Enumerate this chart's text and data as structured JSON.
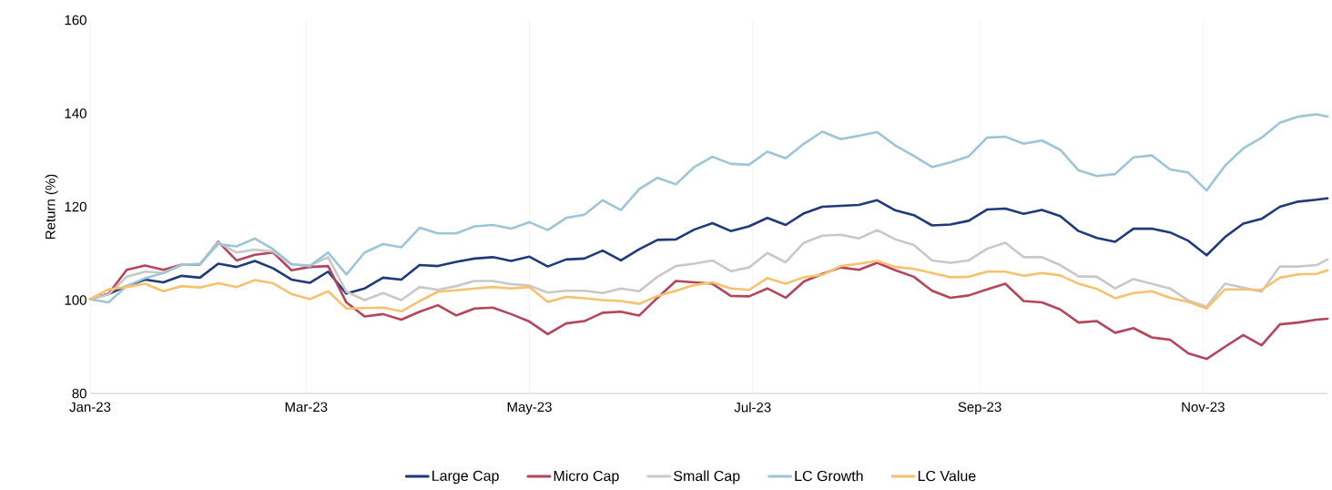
{
  "chart_data": {
    "type": "line",
    "ylabel": "Return (%)",
    "x": [
      "2023-01-01",
      "2023-01-06",
      "2023-01-11",
      "2023-01-16",
      "2023-01-21",
      "2023-01-26",
      "2023-01-31",
      "2023-02-05",
      "2023-02-10",
      "2023-02-15",
      "2023-02-20",
      "2023-02-25",
      "2023-03-02",
      "2023-03-07",
      "2023-03-12",
      "2023-03-17",
      "2023-03-22",
      "2023-03-27",
      "2023-04-01",
      "2023-04-06",
      "2023-04-11",
      "2023-04-16",
      "2023-04-21",
      "2023-04-26",
      "2023-05-01",
      "2023-05-06",
      "2023-05-11",
      "2023-05-16",
      "2023-05-21",
      "2023-05-26",
      "2023-05-31",
      "2023-06-05",
      "2023-06-10",
      "2023-06-15",
      "2023-06-20",
      "2023-06-25",
      "2023-06-30",
      "2023-07-05",
      "2023-07-10",
      "2023-07-15",
      "2023-07-20",
      "2023-07-25",
      "2023-07-30",
      "2023-08-04",
      "2023-08-09",
      "2023-08-14",
      "2023-08-19",
      "2023-08-24",
      "2023-08-29",
      "2023-09-03",
      "2023-09-08",
      "2023-09-13",
      "2023-09-18",
      "2023-09-23",
      "2023-09-28",
      "2023-10-03",
      "2023-10-08",
      "2023-10-13",
      "2023-10-18",
      "2023-10-23",
      "2023-10-28",
      "2023-11-02",
      "2023-11-07",
      "2023-11-12",
      "2023-11-17",
      "2023-11-22",
      "2023-11-27",
      "2023-12-02",
      "2023-12-05"
    ],
    "series": [
      {
        "name": "Large Cap",
        "color": "#1f3a7a",
        "values": [
          100.2,
          101.3,
          103.0,
          104.4,
          103.8,
          105.2,
          104.8,
          107.8,
          107.1,
          108.4,
          106.8,
          104.4,
          103.7,
          106.1,
          101.4,
          102.5,
          104.8,
          104.4,
          107.5,
          107.3,
          108.2,
          108.9,
          109.2,
          108.4,
          109.3,
          107.2,
          108.7,
          108.9,
          110.6,
          108.5,
          110.9,
          112.9,
          113.0,
          115.1,
          116.5,
          114.8,
          115.8,
          117.6,
          116.1,
          118.6,
          120.0,
          120.2,
          120.4,
          121.4,
          119.2,
          118.2,
          116.0,
          116.2,
          117.0,
          119.4,
          119.6,
          118.5,
          119.3,
          118.0,
          114.8,
          113.3,
          112.5,
          115.3,
          115.3,
          114.5,
          112.7,
          109.6,
          113.5,
          116.4,
          117.4,
          120.0,
          121.1,
          121.5,
          121.8
        ]
      },
      {
        "name": "Micro Cap",
        "color": "#b5455a",
        "values": [
          100.2,
          101.3,
          106.5,
          107.4,
          106.5,
          107.6,
          107.6,
          112.5,
          108.5,
          109.7,
          110.2,
          106.4,
          107.1,
          107.3,
          99.5,
          96.5,
          97.0,
          95.8,
          97.5,
          98.9,
          96.7,
          98.2,
          98.4,
          97.0,
          95.4,
          92.7,
          95.0,
          95.5,
          97.3,
          97.5,
          96.7,
          100.5,
          104.1,
          103.8,
          103.5,
          100.9,
          100.8,
          102.5,
          100.5,
          104.0,
          105.6,
          107.0,
          106.5,
          108.0,
          106.4,
          105.0,
          102.0,
          100.5,
          101.0,
          102.3,
          103.5,
          99.8,
          99.5,
          98.0,
          95.2,
          95.5,
          93.0,
          94.0,
          92.0,
          91.5,
          88.6,
          87.4,
          90.0,
          92.5,
          90.3,
          94.8,
          95.2,
          95.8,
          96.0
        ]
      },
      {
        "name": "Small Cap",
        "color": "#c8c8c8",
        "values": [
          100.2,
          101.2,
          105.0,
          106.1,
          105.8,
          107.6,
          107.7,
          112.3,
          110.2,
          110.8,
          110.4,
          107.6,
          107.4,
          109.2,
          101.8,
          100.0,
          101.5,
          100.0,
          102.8,
          102.2,
          103.0,
          104.1,
          104.1,
          103.4,
          103.1,
          101.6,
          102.0,
          102.0,
          101.5,
          102.5,
          101.9,
          105.0,
          107.3,
          107.8,
          108.5,
          106.2,
          107.0,
          110.1,
          108.1,
          112.3,
          113.8,
          114.0,
          113.2,
          115.0,
          113.0,
          111.8,
          108.5,
          108.0,
          108.5,
          111.0,
          112.3,
          109.2,
          109.2,
          107.5,
          105.1,
          105.0,
          102.5,
          104.5,
          103.5,
          102.5,
          99.9,
          98.6,
          103.5,
          102.7,
          101.8,
          107.2,
          107.2,
          107.5,
          108.7
        ]
      },
      {
        "name": "LC Growth",
        "color": "#9cc6d8",
        "values": [
          100.2,
          99.5,
          103.0,
          104.7,
          105.8,
          107.5,
          107.8,
          112.0,
          111.5,
          113.2,
          110.9,
          107.7,
          107.3,
          110.2,
          105.5,
          110.2,
          112.0,
          111.3,
          115.5,
          114.3,
          114.3,
          115.8,
          116.1,
          115.3,
          116.7,
          115.0,
          117.6,
          118.3,
          121.4,
          119.3,
          123.8,
          126.2,
          124.8,
          128.5,
          130.7,
          129.2,
          129.0,
          131.8,
          130.4,
          133.5,
          136.1,
          134.5,
          135.2,
          136.0,
          133.1,
          130.9,
          128.5,
          129.5,
          130.8,
          134.8,
          135.0,
          133.5,
          134.2,
          132.2,
          127.8,
          126.6,
          127.0,
          130.6,
          131.0,
          128.0,
          127.3,
          123.5,
          128.8,
          132.5,
          134.8,
          138.0,
          139.3,
          139.8,
          139.3
        ]
      },
      {
        "name": "LC Value",
        "color": "#f7c26e",
        "values": [
          100.2,
          102.3,
          102.8,
          103.5,
          101.9,
          103.0,
          102.7,
          103.6,
          102.8,
          104.3,
          103.6,
          101.3,
          100.2,
          101.9,
          98.2,
          98.3,
          98.4,
          97.6,
          99.8,
          101.8,
          102.1,
          102.5,
          102.8,
          102.5,
          102.8,
          99.6,
          100.7,
          100.4,
          100.0,
          99.8,
          99.2,
          100.9,
          102.0,
          103.2,
          103.8,
          102.5,
          102.2,
          104.7,
          103.5,
          104.9,
          105.4,
          107.3,
          107.8,
          108.4,
          107.1,
          106.7,
          105.8,
          104.9,
          105.0,
          106.1,
          106.1,
          105.2,
          105.8,
          105.3,
          103.5,
          102.4,
          100.4,
          101.5,
          101.9,
          100.5,
          99.6,
          98.2,
          102.3,
          102.3,
          102.2,
          104.8,
          105.5,
          105.6,
          106.4
        ]
      }
    ],
    "xlim": [
      "2023-01-01",
      "2023-12-05"
    ],
    "xticks": [
      {
        "value": "2023-01-01",
        "label": "Jan-23"
      },
      {
        "value": "2023-03-01",
        "label": "Mar-23"
      },
      {
        "value": "2023-05-01",
        "label": "May-23"
      },
      {
        "value": "2023-07-01",
        "label": "Jul-23"
      },
      {
        "value": "2023-09-01",
        "label": "Sep-23"
      },
      {
        "value": "2023-11-01",
        "label": "Nov-23"
      }
    ],
    "ylim": [
      80,
      160
    ],
    "yticks": [
      80,
      100,
      120,
      140,
      160
    ],
    "grid": "x",
    "legend": "bottom",
    "marker": "none",
    "line_style": "solid"
  }
}
